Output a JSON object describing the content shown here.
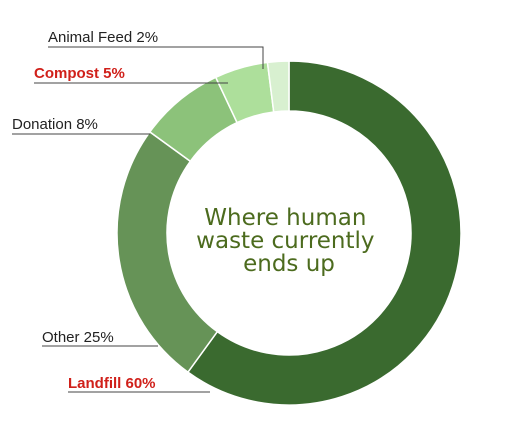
{
  "chart_data": {
    "type": "pie",
    "title": "Where human waste currently ends up",
    "title_lines": [
      "Where human",
      "waste currently",
      "ends up"
    ],
    "slices": [
      {
        "name": "Landfill",
        "value": 60,
        "label": "Landfill 60%",
        "color": "#3a6a2f",
        "emphasis": true
      },
      {
        "name": "Other",
        "value": 25,
        "label": "Other 25%",
        "color": "#669357",
        "emphasis": false
      },
      {
        "name": "Donation",
        "value": 8,
        "label": "Donation 8%",
        "color": "#8cc27a",
        "emphasis": false
      },
      {
        "name": "Compost",
        "value": 5,
        "label": "Compost 5%",
        "color": "#addf9b",
        "emphasis": true
      },
      {
        "name": "Animal Feed",
        "value": 2,
        "label": "Animal Feed 2%",
        "color": "#d8f0d0",
        "emphasis": false
      }
    ],
    "hole": "donut",
    "label_color": "#222222",
    "emphasis_label_color": "#d0201a",
    "title_color": "#4c6b1e",
    "leader_color": "#444444"
  }
}
